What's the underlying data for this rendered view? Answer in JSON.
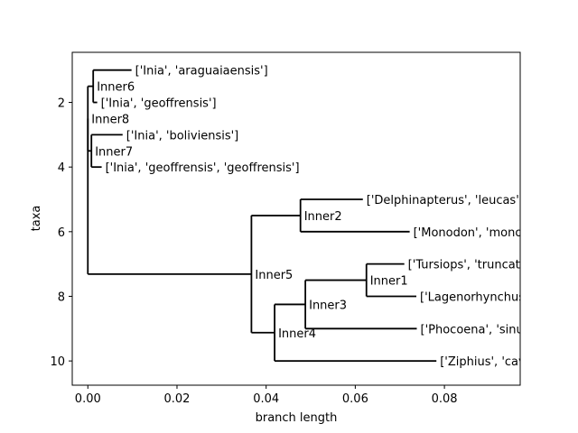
{
  "chart_data": {
    "type": "dendrogram",
    "xlabel": "branch length",
    "ylabel": "taxa",
    "xlim": [
      -0.0035,
      0.097
    ],
    "ylim": [
      10.75,
      0.45
    ],
    "xticks": [
      0.0,
      0.02,
      0.04,
      0.06,
      0.08
    ],
    "xtick_labels": [
      "0.00",
      "0.02",
      "0.04",
      "0.06",
      "0.08"
    ],
    "yticks": [
      2,
      4,
      6,
      8,
      10
    ],
    "ytick_labels": [
      "2",
      "4",
      "6",
      "8",
      "10"
    ],
    "clip_label_at_frame": true,
    "nodes": [
      {
        "id": "root",
        "label": "",
        "x": 0.0,
        "y": 7.3125
      },
      {
        "id": "Inner8",
        "label": "Inner8",
        "x": 0.0,
        "y": 2.5,
        "parent": "root"
      },
      {
        "id": "Inner6",
        "label": "Inner6",
        "x": 0.0012,
        "y": 1.5,
        "parent": "Inner8"
      },
      {
        "id": "Inner7",
        "label": "Inner7",
        "x": 0.0008,
        "y": 3.5,
        "parent": "Inner8"
      },
      {
        "id": "t1",
        "label": "['Inia', 'araguaiaensis']",
        "x": 0.0098,
        "y": 1,
        "parent": "Inner6"
      },
      {
        "id": "t2",
        "label": "['Inia', 'geoffrensis']",
        "x": 0.0021,
        "y": 2,
        "parent": "Inner6"
      },
      {
        "id": "t3",
        "label": "['Inia', 'boliviensis']",
        "x": 0.0078,
        "y": 3,
        "parent": "Inner7"
      },
      {
        "id": "t4",
        "label": "['Inia', 'geoffrensis', 'geoffrensis']",
        "x": 0.0031,
        "y": 4,
        "parent": "Inner7"
      },
      {
        "id": "Inner5",
        "label": "Inner5",
        "x": 0.0367,
        "y": 7.3125,
        "parent": "root"
      },
      {
        "id": "Inner2",
        "label": "Inner2",
        "x": 0.0477,
        "y": 5.5,
        "parent": "Inner5"
      },
      {
        "id": "t5",
        "label": "['Delphinapterus', 'leucas']",
        "x": 0.0617,
        "y": 5,
        "parent": "Inner2"
      },
      {
        "id": "t6",
        "label": "['Monodon', 'monoceros']",
        "x": 0.0722,
        "y": 6,
        "parent": "Inner2"
      },
      {
        "id": "Inner4",
        "label": "Inner4",
        "x": 0.0419,
        "y": 9.125,
        "parent": "Inner5"
      },
      {
        "id": "Inner3",
        "label": "Inner3",
        "x": 0.0488,
        "y": 8.25,
        "parent": "Inner4"
      },
      {
        "id": "Inner1",
        "label": "Inner1",
        "x": 0.0625,
        "y": 7.5,
        "parent": "Inner3"
      },
      {
        "id": "t7",
        "label": "['Tursiops', 'truncatus']",
        "x": 0.071,
        "y": 7,
        "parent": "Inner1"
      },
      {
        "id": "t8",
        "label": "['Lagenorhynchus', 'obscurus']",
        "x": 0.0737,
        "y": 8,
        "parent": "Inner1"
      },
      {
        "id": "t9",
        "label": "['Phocoena', 'sinus']",
        "x": 0.0738,
        "y": 9,
        "parent": "Inner3"
      },
      {
        "id": "t10",
        "label": "['Ziphius', 'cavirostris']",
        "x": 0.0782,
        "y": 10,
        "parent": "Inner4"
      }
    ]
  }
}
